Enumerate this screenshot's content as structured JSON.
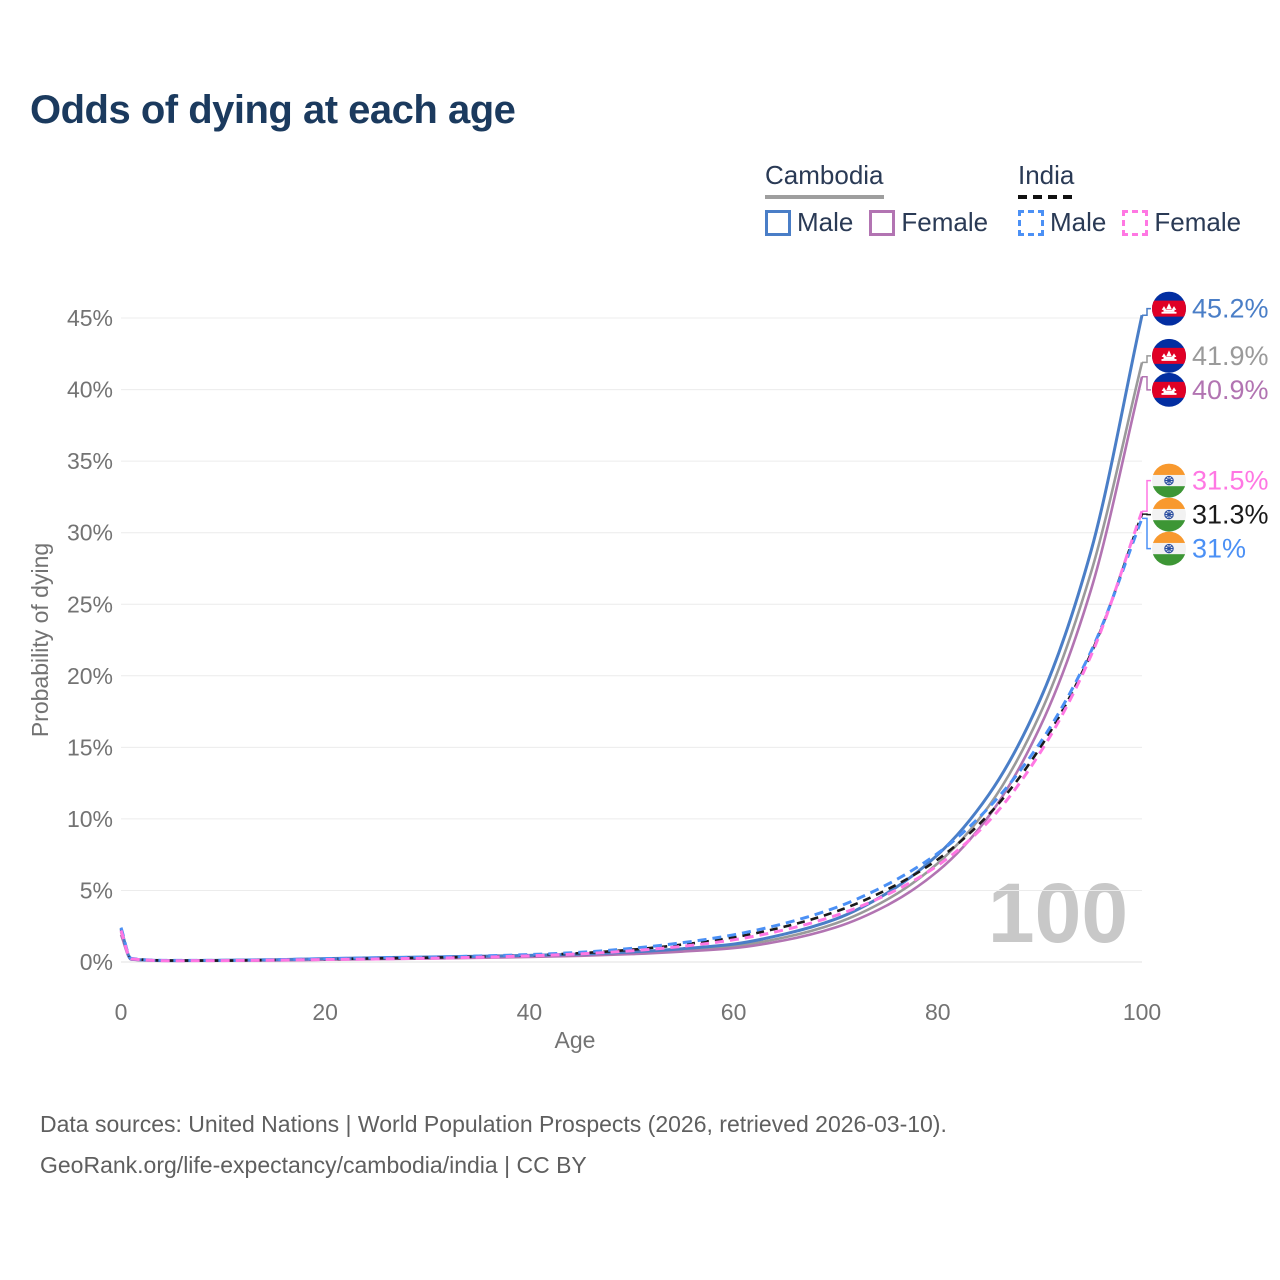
{
  "title": "Odds of dying at each age",
  "legend": {
    "cambodia": {
      "title": "Cambodia",
      "male": "Male",
      "female": "Female"
    },
    "india": {
      "title": "India",
      "male": "Male",
      "female": "Female"
    }
  },
  "colors": {
    "cambodia_male": "#4a7ec7",
    "cambodia_female": "#b274b2",
    "cambodia_combined": "#9a9a9a",
    "india_male": "#4b90f5",
    "india_female": "#ff77e3",
    "india_combined": "#1a1a1a",
    "title_text": "#1b3a5e",
    "legend_text": "#2a3a55",
    "axis_text": "#737373",
    "grid": "#ececec",
    "watermark": "#c8c8c8",
    "footer_text": "#5f5f5f"
  },
  "chart_data": {
    "type": "line",
    "title": "Odds of dying at each age",
    "xlabel": "Age",
    "ylabel": "Probability of dying",
    "xlim": [
      0,
      100
    ],
    "ylim": [
      0,
      45.2
    ],
    "grid": "horizontal",
    "legend_position": "top-right",
    "watermark": "100",
    "x_ticks": [
      0,
      20,
      40,
      60,
      80,
      100
    ],
    "y_ticks": [
      {
        "value": 0,
        "label": "0%"
      },
      {
        "value": 5,
        "label": "5%"
      },
      {
        "value": 10,
        "label": "10%"
      },
      {
        "value": 15,
        "label": "15%"
      },
      {
        "value": 20,
        "label": "20%"
      },
      {
        "value": 25,
        "label": "25%"
      },
      {
        "value": 30,
        "label": "30%"
      },
      {
        "value": 35,
        "label": "35%"
      },
      {
        "value": 40,
        "label": "40%"
      },
      {
        "value": 45,
        "label": "45%"
      }
    ],
    "series": [
      {
        "id": "cambodia-combined",
        "name": "Cambodia (both sexes)",
        "country": "Cambodia",
        "color": "#9a9a9a",
        "label_color": "#9a9a9a",
        "width": 2.6,
        "dash": "",
        "flag": "kh",
        "end_label": "41.9%",
        "points": [
          [
            0,
            2.1
          ],
          [
            1,
            0.19
          ],
          [
            5,
            0.09
          ],
          [
            10,
            0.1
          ],
          [
            15,
            0.13
          ],
          [
            20,
            0.2
          ],
          [
            25,
            0.25
          ],
          [
            30,
            0.29
          ],
          [
            35,
            0.34
          ],
          [
            40,
            0.4
          ],
          [
            45,
            0.49
          ],
          [
            50,
            0.62
          ],
          [
            55,
            0.83
          ],
          [
            60,
            1.1
          ],
          [
            65,
            1.72
          ],
          [
            70,
            2.7
          ],
          [
            75,
            4.35
          ],
          [
            80,
            6.9
          ],
          [
            85,
            10.9
          ],
          [
            90,
            17.3
          ],
          [
            95,
            27.2
          ],
          [
            100,
            41.9
          ]
        ]
      },
      {
        "id": "cambodia-female",
        "name": "Cambodia Female",
        "country": "Cambodia",
        "color": "#b274b2",
        "label_color": "#b274b2",
        "width": 2.6,
        "dash": "",
        "flag": "kh",
        "end_label": "40.9%",
        "points": [
          [
            0,
            1.9
          ],
          [
            1,
            0.17
          ],
          [
            5,
            0.08
          ],
          [
            10,
            0.09
          ],
          [
            15,
            0.11
          ],
          [
            20,
            0.16
          ],
          [
            25,
            0.2
          ],
          [
            30,
            0.24
          ],
          [
            35,
            0.29
          ],
          [
            40,
            0.35
          ],
          [
            45,
            0.43
          ],
          [
            50,
            0.55
          ],
          [
            55,
            0.73
          ],
          [
            60,
            0.97
          ],
          [
            65,
            1.52
          ],
          [
            70,
            2.42
          ],
          [
            75,
            3.95
          ],
          [
            80,
            6.35
          ],
          [
            85,
            10.2
          ],
          [
            90,
            16.4
          ],
          [
            95,
            26.0
          ],
          [
            100,
            40.9
          ]
        ]
      },
      {
        "id": "cambodia-male",
        "name": "Cambodia Male",
        "country": "Cambodia",
        "color": "#4a7ec7",
        "label_color": "#4a7ec7",
        "width": 3,
        "dash": "",
        "flag": "kh",
        "end_label": "45.2%",
        "points": [
          [
            0,
            2.3
          ],
          [
            1,
            0.2
          ],
          [
            5,
            0.1
          ],
          [
            10,
            0.12
          ],
          [
            15,
            0.16
          ],
          [
            20,
            0.24
          ],
          [
            25,
            0.3
          ],
          [
            30,
            0.35
          ],
          [
            35,
            0.4
          ],
          [
            40,
            0.46
          ],
          [
            45,
            0.55
          ],
          [
            50,
            0.7
          ],
          [
            55,
            0.93
          ],
          [
            60,
            1.25
          ],
          [
            65,
            1.95
          ],
          [
            70,
            3.0
          ],
          [
            75,
            4.8
          ],
          [
            80,
            7.5
          ],
          [
            85,
            11.7
          ],
          [
            90,
            18.3
          ],
          [
            95,
            28.7
          ],
          [
            100,
            45.2
          ]
        ]
      },
      {
        "id": "india-combined",
        "name": "India (both sexes)",
        "country": "India",
        "color": "#1a1a1a",
        "label_color": "#1a1a1a",
        "width": 2.6,
        "dash": "8 6",
        "flag": "in",
        "end_label": "31.3%",
        "points": [
          [
            0,
            2.3
          ],
          [
            1,
            0.24
          ],
          [
            5,
            0.1
          ],
          [
            10,
            0.1
          ],
          [
            15,
            0.14
          ],
          [
            20,
            0.2
          ],
          [
            25,
            0.25
          ],
          [
            30,
            0.3
          ],
          [
            35,
            0.37
          ],
          [
            40,
            0.47
          ],
          [
            45,
            0.62
          ],
          [
            50,
            0.86
          ],
          [
            55,
            1.22
          ],
          [
            60,
            1.72
          ],
          [
            65,
            2.47
          ],
          [
            70,
            3.52
          ],
          [
            75,
            5.05
          ],
          [
            80,
            7.17
          ],
          [
            85,
            10.32
          ],
          [
            90,
            14.95
          ],
          [
            95,
            21.55
          ],
          [
            100,
            31.3
          ]
        ]
      },
      {
        "id": "india-male",
        "name": "India Male",
        "country": "India",
        "color": "#4b90f5",
        "label_color": "#4b90f5",
        "width": 3,
        "dash": "9 6",
        "flag": "in",
        "end_label": "31%",
        "points": [
          [
            0,
            2.4
          ],
          [
            1,
            0.25
          ],
          [
            5,
            0.11
          ],
          [
            10,
            0.11
          ],
          [
            15,
            0.16
          ],
          [
            20,
            0.23
          ],
          [
            25,
            0.29
          ],
          [
            30,
            0.34
          ],
          [
            35,
            0.42
          ],
          [
            40,
            0.52
          ],
          [
            45,
            0.68
          ],
          [
            50,
            0.95
          ],
          [
            55,
            1.35
          ],
          [
            60,
            1.9
          ],
          [
            65,
            2.7
          ],
          [
            70,
            3.8
          ],
          [
            75,
            5.4
          ],
          [
            80,
            7.6
          ],
          [
            85,
            10.8
          ],
          [
            90,
            15.3
          ],
          [
            95,
            21.7
          ],
          [
            100,
            31.0
          ]
        ]
      },
      {
        "id": "india-female",
        "name": "India Female",
        "country": "India",
        "color": "#ff77e3",
        "label_color": "#ff77e3",
        "width": 3,
        "dash": "9 6",
        "flag": "in",
        "end_label": "31.5%",
        "points": [
          [
            0,
            2.2
          ],
          [
            1,
            0.22
          ],
          [
            5,
            0.09
          ],
          [
            10,
            0.1
          ],
          [
            15,
            0.13
          ],
          [
            20,
            0.17
          ],
          [
            25,
            0.21
          ],
          [
            30,
            0.26
          ],
          [
            35,
            0.33
          ],
          [
            40,
            0.43
          ],
          [
            45,
            0.57
          ],
          [
            50,
            0.78
          ],
          [
            55,
            1.1
          ],
          [
            60,
            1.55
          ],
          [
            65,
            2.25
          ],
          [
            70,
            3.25
          ],
          [
            75,
            4.7
          ],
          [
            80,
            6.75
          ],
          [
            85,
            9.85
          ],
          [
            90,
            14.6
          ],
          [
            95,
            21.4
          ],
          [
            100,
            31.5
          ]
        ]
      }
    ]
  },
  "footer": {
    "line1": "Data sources: United Nations | World Population Prospects (2026, retrieved 2026-03-10).",
    "line2": "GeoRank.org/life-expectancy/cambodia/india | CC BY"
  }
}
